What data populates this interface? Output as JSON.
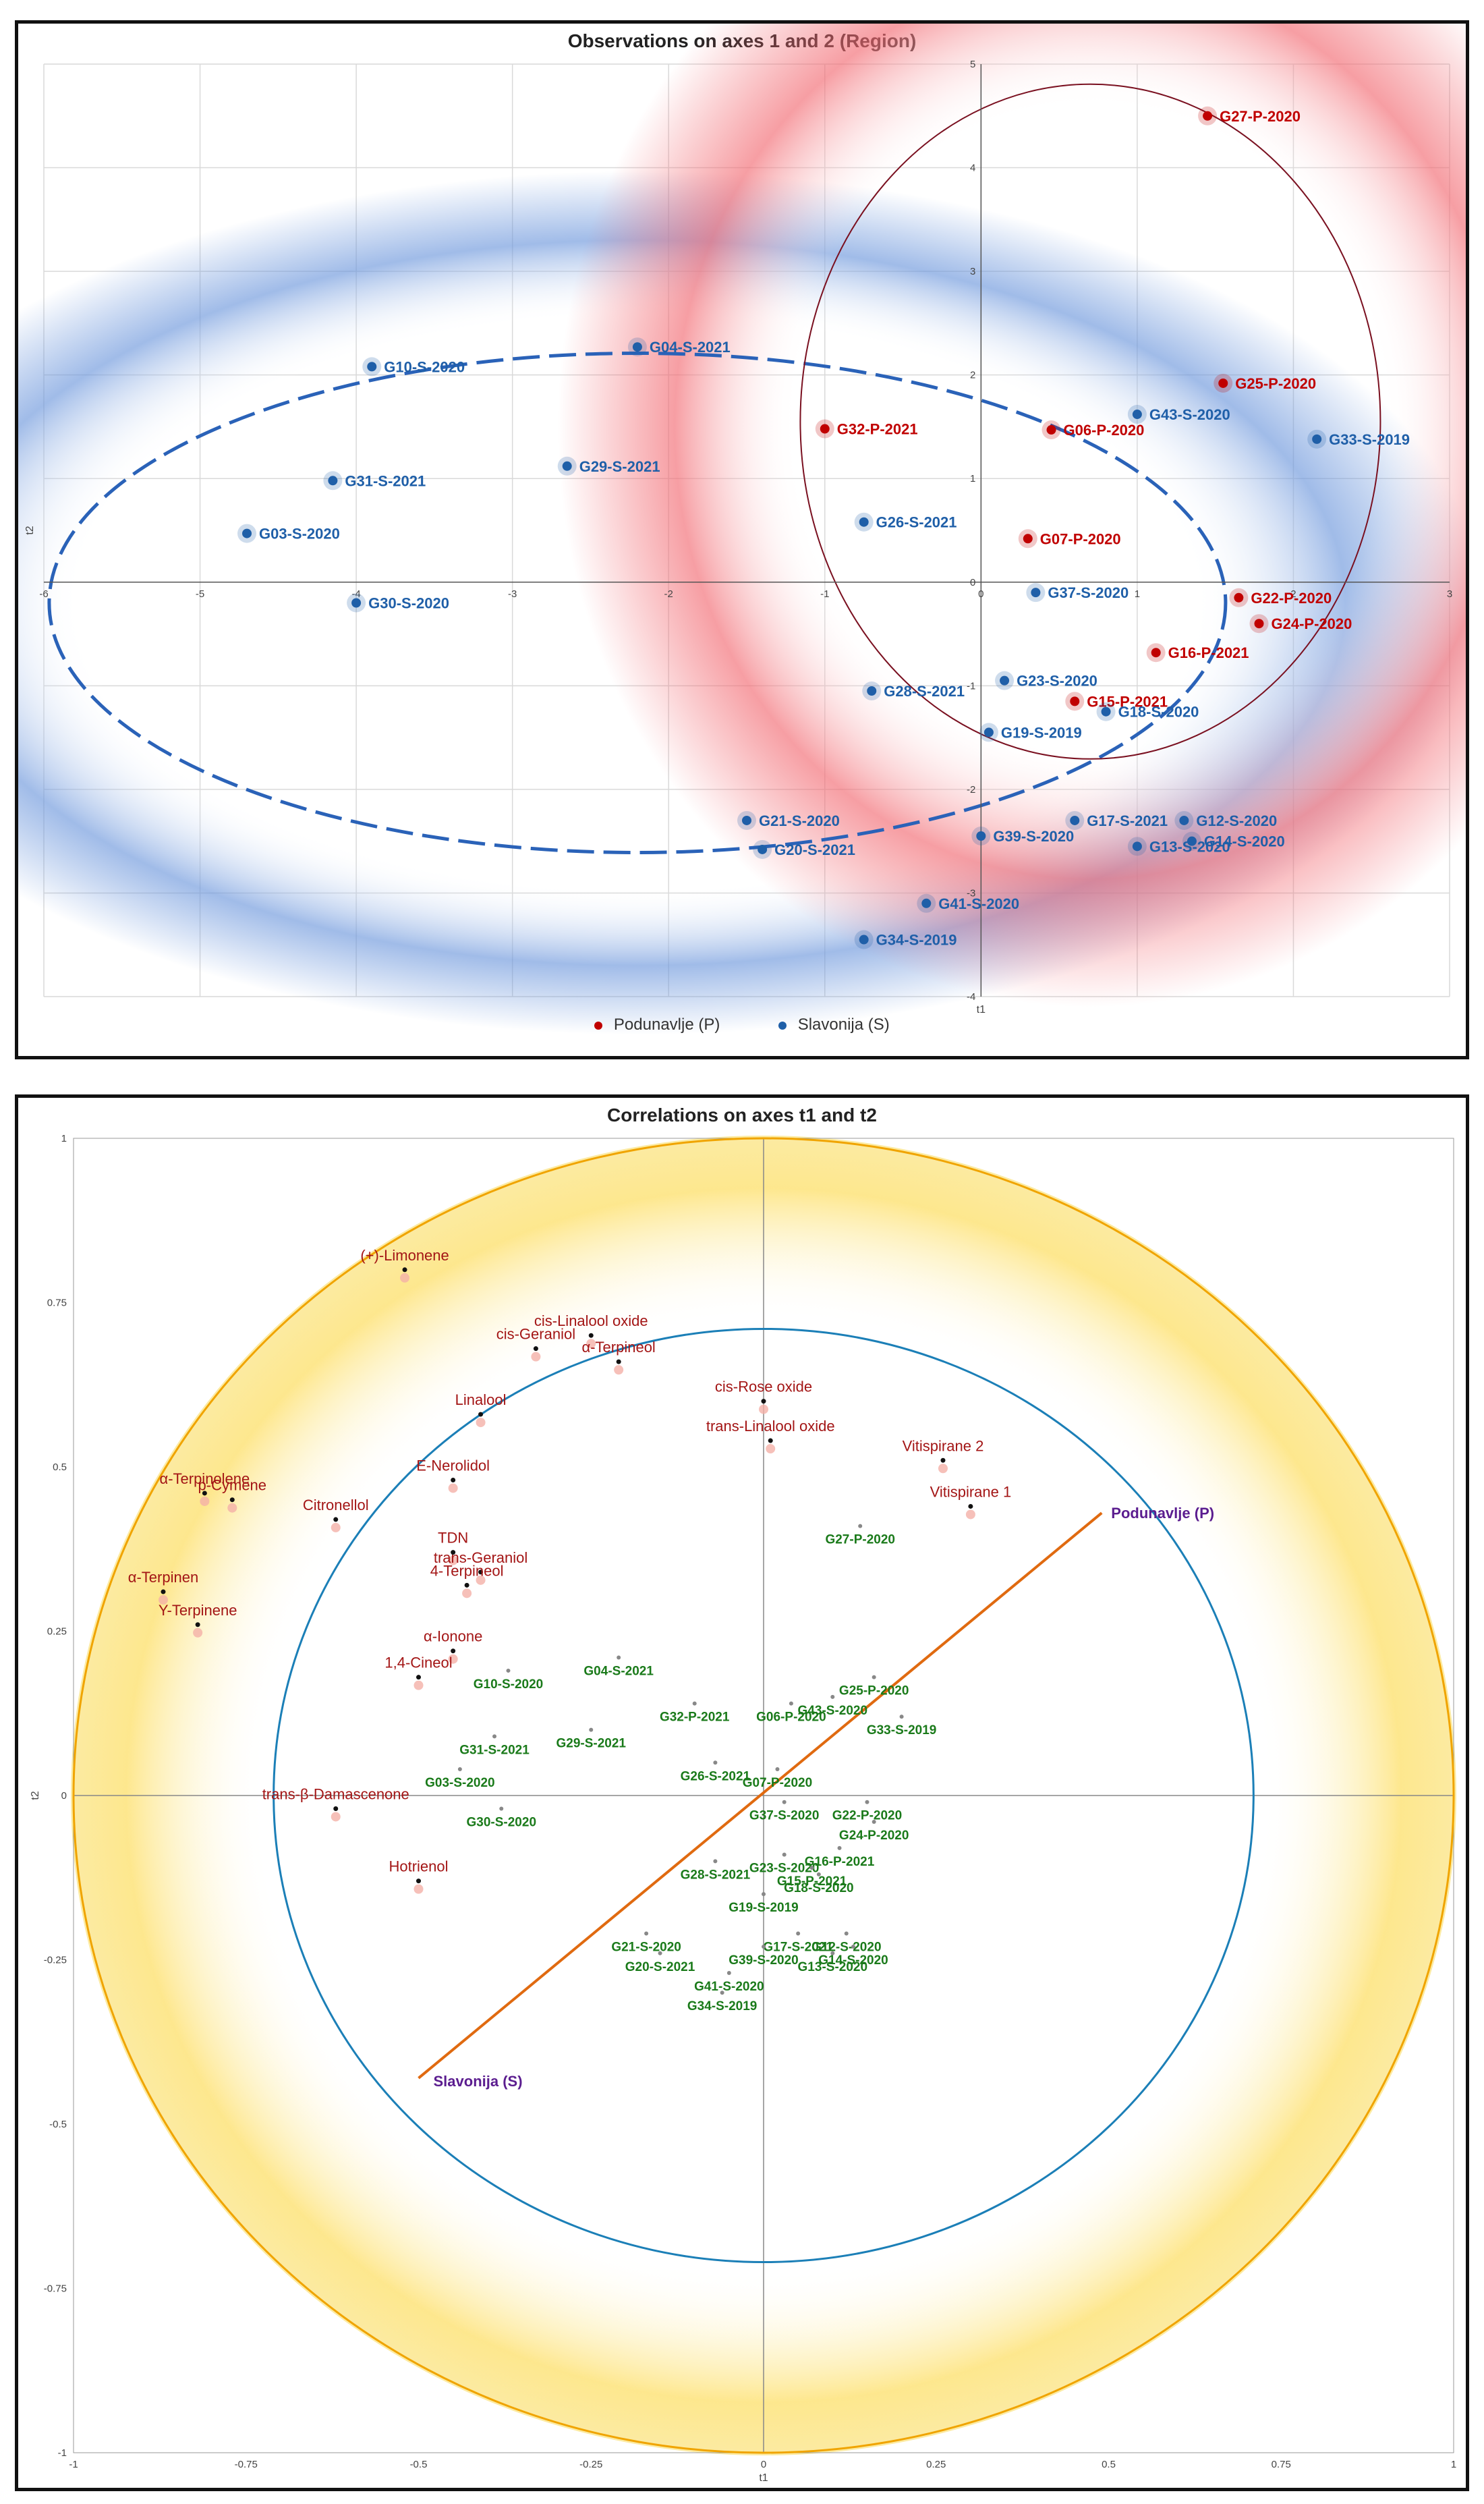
{
  "chart_data": [
    {
      "type": "scatter",
      "title": "Observations on axes 1 and 2 (Region)",
      "xlabel": "t1",
      "ylabel": "t2",
      "xlim": [
        -6,
        3
      ],
      "ylim": [
        -4,
        5
      ],
      "grid": true,
      "legend_position": "bottom",
      "x_ticks": [
        "-6",
        "-5",
        "-4",
        "-3",
        "-2",
        "-1",
        "0",
        "1",
        "2",
        "3"
      ],
      "y_ticks": [
        "-4",
        "-3",
        "-2",
        "-1",
        "0",
        "1",
        "2",
        "3",
        "4",
        "5"
      ],
      "series": [
        {
          "name": "Podunavlje (P)",
          "color": "#c00000",
          "points": [
            {
              "label": "G27-P-2020",
              "x": 1.45,
              "y": 4.5
            },
            {
              "label": "G25-P-2020",
              "x": 1.55,
              "y": 1.92
            },
            {
              "label": "G32-P-2021",
              "x": -1.0,
              "y": 1.48
            },
            {
              "label": "G06-P-2020",
              "x": 0.45,
              "y": 1.47
            },
            {
              "label": "G07-P-2020",
              "x": 0.3,
              "y": 0.42
            },
            {
              "label": "G22-P-2020",
              "x": 1.65,
              "y": -0.15
            },
            {
              "label": "G24-P-2020",
              "x": 1.78,
              "y": -0.4
            },
            {
              "label": "G16-P-2021",
              "x": 1.12,
              "y": -0.68
            },
            {
              "label": "G15-P-2021",
              "x": 0.6,
              "y": -1.15
            }
          ]
        },
        {
          "name": "Slavonija (S)",
          "color": "#1f5fa8",
          "points": [
            {
              "label": "G04-S-2021",
              "x": -2.2,
              "y": 2.27
            },
            {
              "label": "G10-S-2020",
              "x": -3.9,
              "y": 2.08
            },
            {
              "label": "G43-S-2020",
              "x": 1.0,
              "y": 1.62
            },
            {
              "label": "G33-S-2019",
              "x": 2.15,
              "y": 1.38
            },
            {
              "label": "G29-S-2021",
              "x": -2.65,
              "y": 1.12
            },
            {
              "label": "G31-S-2021",
              "x": -4.15,
              "y": 0.98
            },
            {
              "label": "G26-S-2021",
              "x": -0.75,
              "y": 0.58
            },
            {
              "label": "G03-S-2020",
              "x": -4.7,
              "y": 0.47
            },
            {
              "label": "G30-S-2020",
              "x": -4.0,
              "y": -0.2
            },
            {
              "label": "G37-S-2020",
              "x": 0.35,
              "y": -0.1
            },
            {
              "label": "G23-S-2020",
              "x": 0.15,
              "y": -0.95
            },
            {
              "label": "G28-S-2021",
              "x": -0.7,
              "y": -1.05
            },
            {
              "label": "G18-S-2020",
              "x": 0.8,
              "y": -1.25
            },
            {
              "label": "G19-S-2019",
              "x": 0.05,
              "y": -1.45
            },
            {
              "label": "G21-S-2020",
              "x": -1.5,
              "y": -2.3
            },
            {
              "label": "G20-S-2021",
              "x": -1.4,
              "y": -2.58
            },
            {
              "label": "G17-S-2021",
              "x": 0.6,
              "y": -2.3
            },
            {
              "label": "G39-S-2020",
              "x": 0.0,
              "y": -2.45
            },
            {
              "label": "G12-S-2020",
              "x": 1.3,
              "y": -2.3
            },
            {
              "label": "G14-S-2020",
              "x": 1.35,
              "y": -2.5
            },
            {
              "label": "G13-S-2020",
              "x": 1.0,
              "y": -2.55
            },
            {
              "label": "G41-S-2020",
              "x": -0.35,
              "y": -3.1
            },
            {
              "label": "G34-S-2019",
              "x": -0.75,
              "y": -3.45
            }
          ]
        }
      ],
      "annotations": [
        "confidence ellipse Podunavlje (P)",
        "confidence ellipse Slavonija (S)"
      ]
    },
    {
      "type": "scatter",
      "title": "Correlations on axes t1 and t2",
      "xlabel": "t1",
      "ylabel": "t2",
      "xlim": [
        -1,
        1
      ],
      "ylim": [
        -1,
        1
      ],
      "grid": false,
      "x_ticks": [
        "-1",
        "-0.75",
        "-0.5",
        "-0.25",
        "0",
        "0.25",
        "0.5",
        "0.75",
        "1"
      ],
      "y_ticks": [
        "-1",
        "-0.75",
        "-0.5",
        "-0.25",
        "0",
        "0.25",
        "0.5",
        "0.75",
        "1"
      ],
      "variables": [
        {
          "label": "(+)-Limonene",
          "x": -0.52,
          "y": 0.8
        },
        {
          "label": "cis-Geraniol",
          "x": -0.33,
          "y": 0.68
        },
        {
          "label": "cis-Linalool oxide",
          "x": -0.25,
          "y": 0.7
        },
        {
          "label": "α-Terpineol",
          "x": -0.21,
          "y": 0.66
        },
        {
          "label": "cis-Rose oxide",
          "x": 0.0,
          "y": 0.6
        },
        {
          "label": "trans-Linalool oxide",
          "x": 0.01,
          "y": 0.54
        },
        {
          "label": "Linalool",
          "x": -0.41,
          "y": 0.58
        },
        {
          "label": "E-Nerolidol",
          "x": -0.45,
          "y": 0.48
        },
        {
          "label": "Vitispirane 2",
          "x": 0.26,
          "y": 0.51
        },
        {
          "label": "Vitispirane 1",
          "x": 0.3,
          "y": 0.44
        },
        {
          "label": "α-Terpinolene",
          "x": -0.81,
          "y": 0.46
        },
        {
          "label": "p-Cymene",
          "x": -0.77,
          "y": 0.45
        },
        {
          "label": "Citronellol",
          "x": -0.62,
          "y": 0.42
        },
        {
          "label": "TDN",
          "x": -0.45,
          "y": 0.37
        },
        {
          "label": "trans-Geraniol",
          "x": -0.41,
          "y": 0.34
        },
        {
          "label": "4-Terpineol",
          "x": -0.43,
          "y": 0.32
        },
        {
          "label": "α-Terpinen",
          "x": -0.87,
          "y": 0.31
        },
        {
          "label": "Υ-Terpinene",
          "x": -0.82,
          "y": 0.26
        },
        {
          "label": "α-Ionone",
          "x": -0.45,
          "y": 0.22
        },
        {
          "label": "1,4-Cineol",
          "x": -0.5,
          "y": 0.18
        },
        {
          "label": "trans-β-Damascenone",
          "x": -0.62,
          "y": -0.02
        },
        {
          "label": "Hotrienol",
          "x": -0.5,
          "y": -0.13
        }
      ],
      "observations": [
        {
          "label": "G27-P-2020",
          "x": 0.14,
          "y": 0.41
        },
        {
          "label": "G10-S-2020",
          "x": -0.37,
          "y": 0.19
        },
        {
          "label": "G04-S-2021",
          "x": -0.21,
          "y": 0.21
        },
        {
          "label": "G32-P-2021",
          "x": -0.1,
          "y": 0.14
        },
        {
          "label": "G29-S-2021",
          "x": -0.25,
          "y": 0.1
        },
        {
          "label": "G06-P-2020",
          "x": 0.04,
          "y": 0.14
        },
        {
          "label": "G25-P-2020",
          "x": 0.16,
          "y": 0.18
        },
        {
          "label": "G43-S-2020",
          "x": 0.1,
          "y": 0.15
        },
        {
          "label": "G33-S-2019",
          "x": 0.2,
          "y": 0.12
        },
        {
          "label": "G31-S-2021",
          "x": -0.39,
          "y": 0.09
        },
        {
          "label": "G26-S-2021",
          "x": -0.07,
          "y": 0.05
        },
        {
          "label": "G03-S-2020",
          "x": -0.44,
          "y": 0.04
        },
        {
          "label": "G07-P-2020",
          "x": 0.02,
          "y": 0.04
        },
        {
          "label": "G30-S-2020",
          "x": -0.38,
          "y": -0.02
        },
        {
          "label": "G37-S-2020",
          "x": 0.03,
          "y": -0.01
        },
        {
          "label": "G22-P-2020",
          "x": 0.15,
          "y": -0.01
        },
        {
          "label": "G24-P-2020",
          "x": 0.16,
          "y": -0.04
        },
        {
          "label": "G16-P-2021",
          "x": 0.11,
          "y": -0.08
        },
        {
          "label": "G23-S-2020",
          "x": 0.03,
          "y": -0.09
        },
        {
          "label": "G28-S-2021",
          "x": -0.07,
          "y": -0.1
        },
        {
          "label": "G15-P-2021",
          "x": 0.07,
          "y": -0.11
        },
        {
          "label": "G18-S-2020",
          "x": 0.08,
          "y": -0.12
        },
        {
          "label": "G19-S-2019",
          "x": 0.0,
          "y": -0.15
        },
        {
          "label": "G21-S-2020",
          "x": -0.17,
          "y": -0.21
        },
        {
          "label": "G20-S-2021",
          "x": -0.15,
          "y": -0.24
        },
        {
          "label": "G17-S-2021",
          "x": 0.05,
          "y": -0.21
        },
        {
          "label": "G39-S-2020",
          "x": 0.0,
          "y": -0.23
        },
        {
          "label": "G12-S-2020",
          "x": 0.12,
          "y": -0.21
        },
        {
          "label": "G14-S-2020",
          "x": 0.13,
          "y": -0.23
        },
        {
          "label": "G13-S-2020",
          "x": 0.1,
          "y": -0.24
        },
        {
          "label": "G41-S-2020",
          "x": -0.05,
          "y": -0.27
        },
        {
          "label": "G34-S-2019",
          "x": -0.06,
          "y": -0.3
        }
      ],
      "region_vector": {
        "from": {
          "label": "Slavonija (S)",
          "x": -0.5,
          "y": -0.43
        },
        "to": {
          "label": "Podunavlje (P)",
          "x": 0.49,
          "y": 0.43
        }
      },
      "circles": [
        1.0,
        0.71
      ]
    }
  ],
  "colors": {
    "podunavlje": "#c00000",
    "slavonija": "#1f5fa8",
    "variable_label": "#a31515",
    "observation_label": "#1a7a1a",
    "region_label": "#5b1d8f",
    "vector": "#e06a10",
    "outer_circle": "#f0a400",
    "inner_circle": "#1b7fb7"
  }
}
